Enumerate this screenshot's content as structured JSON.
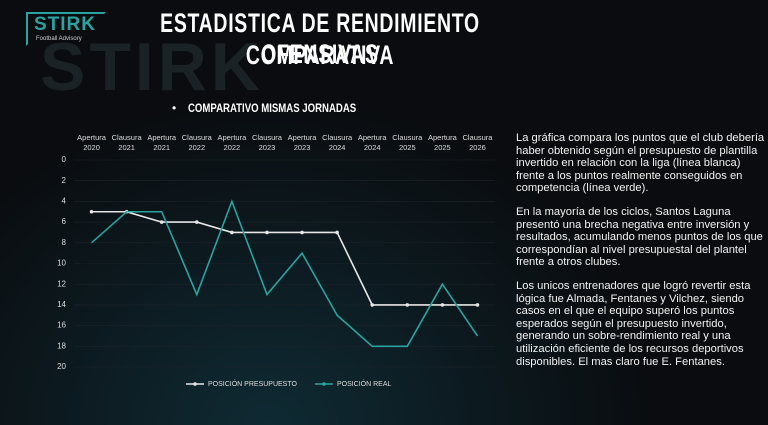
{
  "logo": {
    "name": "STIRK",
    "tagline": "Football Advisory"
  },
  "title_lines": [
    "ESTADISTICA DE RENDIMIENTO OFENSIVAS",
    "COMPARATIVA"
  ],
  "subtitle": "COMPARATIVO MISMAS JORNADAS",
  "paragraphs": [
    "La gráfica compara los puntos que el club debería haber obtenido según el presupuesto de plantilla invertido en relación con la liga (línea blanca) frente a los puntos realmente conseguidos en competencia (línea verde).",
    "En la mayoría de los ciclos, Santos Laguna presentó una brecha negativa entre inversión y resultados, acumulando menos puntos de los que correspondían al nivel presupuestal del plantel frente a otros clubes.",
    "Los unicos entrenadores que logró revertir esta lógica fue Almada, Fentanes y Vilchez, siendo casos en el que el equipo superó los puntos esperados según el presupuesto invertido, generando un sobre-rendimiento real y una utilización eficiente de los recursos deportivos disponibles. El mas claro fue E. Fentanes."
  ],
  "chart_data": {
    "type": "line",
    "categories": [
      "Apertura 2020",
      "Clausura 2021",
      "Apertura 2021",
      "Clausura 2022",
      "Apertura 2022",
      "Clausura 2023",
      "Apertura 2023",
      "Clausura 2024",
      "Apertura 2024",
      "Clausura 2025",
      "Apertura 2025",
      "Clausura 2026"
    ],
    "series": [
      {
        "name": "POSICIÓN PRESUPUESTO",
        "color": "#e6e6e6",
        "marker": true,
        "values": [
          5,
          5,
          6,
          6,
          7,
          7,
          7,
          7,
          14,
          14,
          14,
          14
        ]
      },
      {
        "name": "POSICIÓN REAL",
        "color": "#2aa3a0",
        "marker": false,
        "values": [
          8,
          5,
          5,
          13,
          4,
          13,
          9,
          15,
          18,
          18,
          12,
          17
        ]
      }
    ],
    "ylim": [
      0,
      20
    ],
    "yticks": [
      0,
      2,
      4,
      6,
      8,
      10,
      12,
      14,
      16,
      18,
      20
    ],
    "y_inverted": true,
    "grid": true,
    "legend": "bottom"
  }
}
